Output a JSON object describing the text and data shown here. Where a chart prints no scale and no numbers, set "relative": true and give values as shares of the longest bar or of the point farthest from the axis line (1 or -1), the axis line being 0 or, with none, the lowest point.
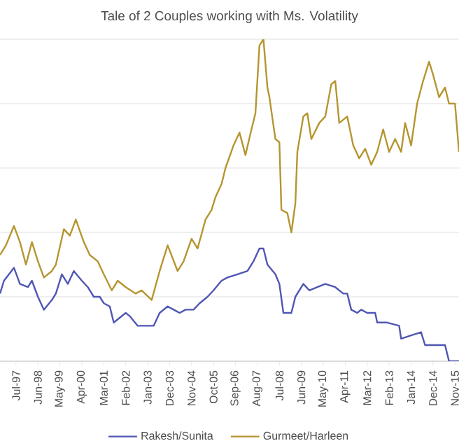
{
  "chart_data": {
    "type": "line",
    "title": "Tale of 2 Couples working with Ms. Volatility",
    "relative": true,
    "grid": "y",
    "legend": "bottom",
    "xlim": [
      "1996-11",
      "2016-01"
    ],
    "xticks": [
      {
        "value": "1997-07",
        "label": "Jul-97"
      },
      {
        "value": "1998-06",
        "label": "Jun-98"
      },
      {
        "value": "1999-05",
        "label": "May-99"
      },
      {
        "value": "2000-04",
        "label": "Apr-00"
      },
      {
        "value": "2001-03",
        "label": "Mar-01"
      },
      {
        "value": "2002-02",
        "label": "Feb-02"
      },
      {
        "value": "2003-01",
        "label": "Jan-03"
      },
      {
        "value": "2003-12",
        "label": "Dec-03"
      },
      {
        "value": "2004-11",
        "label": "Nov-04"
      },
      {
        "value": "2005-10",
        "label": "Oct-05"
      },
      {
        "value": "2006-09",
        "label": "Sep-06"
      },
      {
        "value": "2007-08",
        "label": "Aug-07"
      },
      {
        "value": "2008-07",
        "label": "Jul-08"
      },
      {
        "value": "2009-06",
        "label": "Jun-09"
      },
      {
        "value": "2010-05",
        "label": "May-10"
      },
      {
        "value": "2011-04",
        "label": "Apr-11"
      },
      {
        "value": "2012-03",
        "label": "Mar-12"
      },
      {
        "value": "2013-02",
        "label": "Feb-13"
      },
      {
        "value": "2014-01",
        "label": "Jan-14"
      },
      {
        "value": "2014-12",
        "label": "Dec-14"
      },
      {
        "value": "2015-11",
        "label": "Nov-15"
      }
    ],
    "series": [
      {
        "name": "Rakesh/Sunita",
        "color": "#4f56b3",
        "x": [
          "1996-11",
          "1997-01",
          "1997-06",
          "1997-09",
          "1998-01",
          "1998-03",
          "1998-06",
          "1998-09",
          "1999-01",
          "1999-03",
          "1999-06",
          "1999-09",
          "1999-12",
          "2000-04",
          "2000-07",
          "2000-10",
          "2001-01",
          "2001-03",
          "2001-06",
          "2001-08",
          "2002-02",
          "2002-04",
          "2002-08",
          "2002-11",
          "2003-02",
          "2003-04",
          "2003-07",
          "2003-11",
          "2004-02",
          "2004-05",
          "2004-08",
          "2004-12",
          "2005-03",
          "2005-07",
          "2005-10",
          "2006-02",
          "2006-05",
          "2006-10",
          "2007-03",
          "2007-06",
          "2007-09",
          "2007-11",
          "2008-01",
          "2008-05",
          "2008-07",
          "2008-09",
          "2009-01",
          "2009-03",
          "2009-07",
          "2009-10",
          "2010-02",
          "2010-06",
          "2010-11",
          "2011-03",
          "2011-05",
          "2011-07",
          "2011-10",
          "2011-12",
          "2012-03",
          "2012-07",
          "2012-08",
          "2013-01",
          "2013-07",
          "2013-08",
          "2014-01",
          "2014-06",
          "2014-08",
          "2015-06",
          "2015-08",
          "2016-01"
        ],
        "values": [
          0.21,
          0.25,
          0.29,
          0.24,
          0.23,
          0.25,
          0.2,
          0.16,
          0.19,
          0.21,
          0.27,
          0.24,
          0.28,
          0.25,
          0.23,
          0.2,
          0.2,
          0.18,
          0.17,
          0.12,
          0.15,
          0.14,
          0.11,
          0.11,
          0.11,
          0.11,
          0.15,
          0.17,
          0.16,
          0.15,
          0.16,
          0.16,
          0.18,
          0.2,
          0.22,
          0.25,
          0.26,
          0.27,
          0.28,
          0.31,
          0.35,
          0.35,
          0.3,
          0.27,
          0.24,
          0.15,
          0.15,
          0.2,
          0.24,
          0.22,
          0.23,
          0.24,
          0.23,
          0.21,
          0.21,
          0.16,
          0.15,
          0.16,
          0.15,
          0.15,
          0.12,
          0.12,
          0.11,
          0.07,
          0.08,
          0.09,
          0.05,
          0.05,
          0.0,
          0.0
        ]
      },
      {
        "name": "Gurmeet/Harleen",
        "color": "#b5952f",
        "x": [
          "1996-11",
          "1997-02",
          "1997-06",
          "1997-09",
          "1997-12",
          "1998-03",
          "1998-06",
          "1998-09",
          "1999-01",
          "1999-03",
          "1999-07",
          "1999-10",
          "2000-01",
          "2000-05",
          "2000-08",
          "2000-12",
          "2001-03",
          "2001-07",
          "2001-10",
          "2002-02",
          "2002-07",
          "2002-10",
          "2003-03",
          "2003-07",
          "2003-11",
          "2004-04",
          "2004-07",
          "2004-11",
          "2005-02",
          "2005-06",
          "2005-09",
          "2005-11",
          "2006-02",
          "2006-04",
          "2006-08",
          "2006-11",
          "2007-02",
          "2007-05",
          "2007-07",
          "2007-09",
          "2007-11",
          "2008-01",
          "2008-02",
          "2008-05",
          "2008-07",
          "2008-08",
          "2008-11",
          "2009-01",
          "2009-03",
          "2009-04",
          "2009-07",
          "2009-09",
          "2009-11",
          "2010-03",
          "2010-06",
          "2010-09",
          "2010-11",
          "2011-01",
          "2011-05",
          "2011-08",
          "2011-11",
          "2012-02",
          "2012-05",
          "2012-08",
          "2012-11",
          "2013-02",
          "2013-05",
          "2013-08",
          "2013-10",
          "2014-01",
          "2014-04",
          "2014-07",
          "2014-10",
          "2014-12",
          "2015-03",
          "2015-06",
          "2015-08",
          "2015-11",
          "2016-01"
        ],
        "values": [
          0.33,
          0.36,
          0.42,
          0.37,
          0.3,
          0.37,
          0.31,
          0.26,
          0.28,
          0.3,
          0.41,
          0.39,
          0.44,
          0.37,
          0.33,
          0.31,
          0.27,
          0.22,
          0.25,
          0.23,
          0.21,
          0.22,
          0.19,
          0.28,
          0.36,
          0.28,
          0.31,
          0.38,
          0.35,
          0.44,
          0.47,
          0.51,
          0.55,
          0.6,
          0.67,
          0.71,
          0.64,
          0.72,
          0.77,
          0.98,
          1.0,
          0.85,
          0.82,
          0.69,
          0.68,
          0.47,
          0.46,
          0.4,
          0.49,
          0.65,
          0.76,
          0.77,
          0.69,
          0.74,
          0.76,
          0.86,
          0.87,
          0.74,
          0.76,
          0.67,
          0.63,
          0.66,
          0.61,
          0.65,
          0.72,
          0.65,
          0.69,
          0.65,
          0.74,
          0.67,
          0.8,
          0.87,
          0.93,
          0.89,
          0.82,
          0.85,
          0.8,
          0.8,
          0.65
        ]
      }
    ]
  }
}
